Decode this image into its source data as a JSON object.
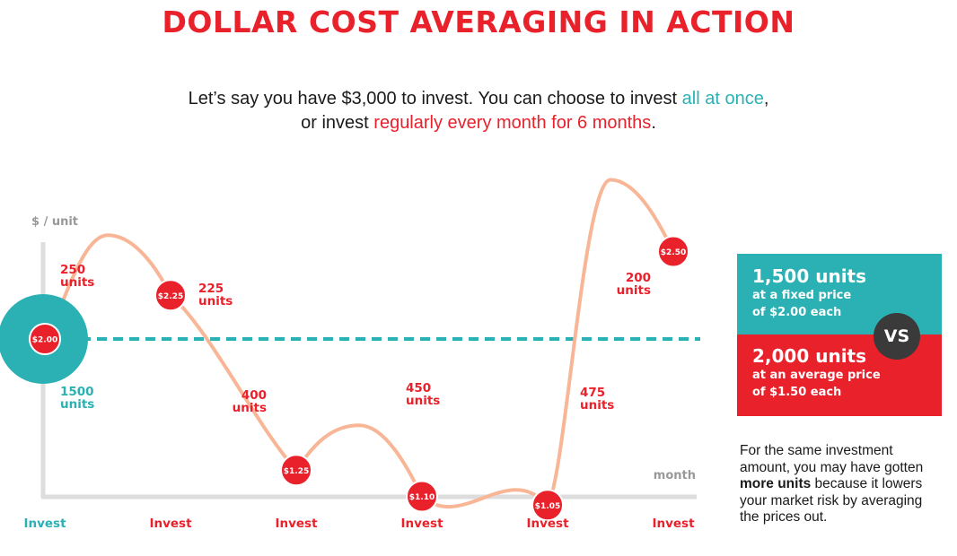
{
  "title": "DOLLAR COST AVERAGING IN ACTION",
  "intro": {
    "line1_a": "Let’s say you have $3,000 to invest. You can choose to invest ",
    "line1_b": "all at once",
    "line1_c": ",",
    "line2_a": "or invest ",
    "line2_b": "regularly every month for 6 months",
    "line2_c": "."
  },
  "colors": {
    "red": "#e8212b",
    "teal": "#2bb1b4",
    "line": "#f8b697",
    "axis": "#dddddd",
    "dark": "#3a3a3a"
  },
  "chart_data": {
    "type": "line",
    "ylabel": "$ / unit",
    "xlabel": "month",
    "lump_sum": {
      "price_label": "$2.00",
      "price": 2.0,
      "units": "1500",
      "units_word": "units",
      "x_label": "Invest"
    },
    "points": [
      {
        "month": 1,
        "price": 2.0,
        "price_label": "$2.00",
        "units": "250",
        "units_word": "units",
        "x_label": "Invest"
      },
      {
        "month": 2,
        "price": 2.25,
        "price_label": "$2.25",
        "units": "225",
        "units_word": "units",
        "x_label": "Invest"
      },
      {
        "month": 3,
        "price": 1.25,
        "price_label": "$1.25",
        "units": "400",
        "units_word": "units",
        "x_label": "Invest"
      },
      {
        "month": 4,
        "price": 1.1,
        "price_label": "$1.10",
        "units": "450",
        "units_word": "units",
        "x_label": "Invest"
      },
      {
        "month": 5,
        "price": 1.05,
        "price_label": "$1.05",
        "units": "475",
        "units_word": "units",
        "x_label": "Invest"
      },
      {
        "month": 6,
        "price": 2.5,
        "price_label": "$2.50",
        "units": "200",
        "units_word": "units",
        "x_label": "Invest"
      }
    ]
  },
  "comparison": {
    "top": {
      "big": "1,500 units",
      "line1": "at a fixed price",
      "line2": "of $2.00 each"
    },
    "vs": "VS",
    "bottom": {
      "big": "2,000 units",
      "line1": "at an average price",
      "line2": "of $1.50 each"
    }
  },
  "note": {
    "a": "For the same investment amount, you may have gotten ",
    "b": "more units",
    "c": " because it lowers your market risk by averaging the prices out."
  }
}
